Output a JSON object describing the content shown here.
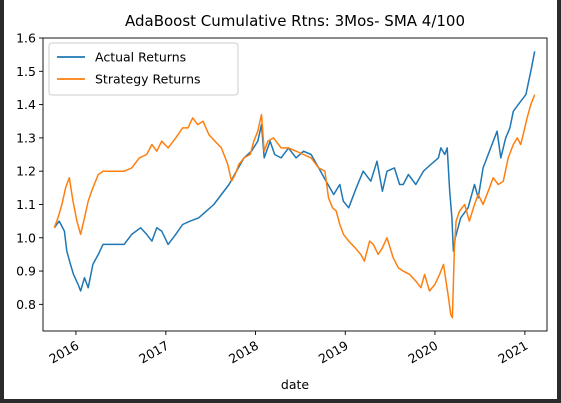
{
  "chart_data": {
    "type": "line",
    "title": "AdaBoost Cumulative Rtns: 3Mos- SMA 4/100",
    "xlabel": "date",
    "ylabel": "",
    "xlim": [
      "2015-08-20",
      "2021-04-01"
    ],
    "ylim": [
      0.72,
      1.6
    ],
    "x_ticks": [
      {
        "label": "2016",
        "date": "2016-01-01"
      },
      {
        "label": "2017",
        "date": "2017-01-01"
      },
      {
        "label": "2018",
        "date": "2018-01-01"
      },
      {
        "label": "2019",
        "date": "2019-01-01"
      },
      {
        "label": "2020",
        "date": "2020-01-01"
      },
      {
        "label": "2021",
        "date": "2021-01-01"
      }
    ],
    "y_ticks": [
      0.8,
      0.9,
      1.0,
      1.1,
      1.2,
      1.3,
      1.4,
      1.5,
      1.6
    ],
    "y_tick_labels": [
      "0.8",
      "0.9",
      "1.0",
      "1.1",
      "1.2",
      "1.3",
      "1.4",
      "1.5",
      "1.6"
    ],
    "grid": false,
    "legend": {
      "position": "top-left"
    },
    "series": [
      {
        "name": "Actual Returns",
        "color": "#1f77b4",
        "points": [
          [
            "2015-10-05",
            1.03
          ],
          [
            "2015-10-25",
            1.05
          ],
          [
            "2015-11-15",
            1.02
          ],
          [
            "2015-11-25",
            0.96
          ],
          [
            "2015-12-10",
            0.92
          ],
          [
            "2015-12-22",
            0.89
          ],
          [
            "2016-01-10",
            0.86
          ],
          [
            "2016-01-20",
            0.84
          ],
          [
            "2016-02-05",
            0.88
          ],
          [
            "2016-02-20",
            0.85
          ],
          [
            "2016-03-10",
            0.92
          ],
          [
            "2016-04-01",
            0.95
          ],
          [
            "2016-04-20",
            0.98
          ],
          [
            "2016-05-10",
            0.98
          ],
          [
            "2016-06-10",
            0.98
          ],
          [
            "2016-07-15",
            0.98
          ],
          [
            "2016-08-15",
            1.01
          ],
          [
            "2016-09-20",
            1.03
          ],
          [
            "2016-10-15",
            1.01
          ],
          [
            "2016-11-05",
            0.99
          ],
          [
            "2016-11-25",
            1.03
          ],
          [
            "2016-12-15",
            1.02
          ],
          [
            "2017-01-10",
            0.98
          ],
          [
            "2017-02-10",
            1.01
          ],
          [
            "2017-03-10",
            1.04
          ],
          [
            "2017-04-10",
            1.05
          ],
          [
            "2017-05-15",
            1.06
          ],
          [
            "2017-06-15",
            1.08
          ],
          [
            "2017-07-15",
            1.1
          ],
          [
            "2017-08-15",
            1.13
          ],
          [
            "2017-09-15",
            1.16
          ],
          [
            "2017-10-15",
            1.2
          ],
          [
            "2017-11-15",
            1.24
          ],
          [
            "2017-12-15",
            1.26
          ],
          [
            "2018-01-10",
            1.29
          ],
          [
            "2018-01-25",
            1.34
          ],
          [
            "2018-02-05",
            1.24
          ],
          [
            "2018-03-01",
            1.29
          ],
          [
            "2018-03-20",
            1.25
          ],
          [
            "2018-04-15",
            1.24
          ],
          [
            "2018-05-15",
            1.27
          ],
          [
            "2018-06-15",
            1.24
          ],
          [
            "2018-07-15",
            1.26
          ],
          [
            "2018-08-15",
            1.25
          ],
          [
            "2018-09-15",
            1.21
          ],
          [
            "2018-10-15",
            1.17
          ],
          [
            "2018-11-15",
            1.13
          ],
          [
            "2018-12-10",
            1.16
          ],
          [
            "2018-12-24",
            1.11
          ],
          [
            "2019-01-15",
            1.09
          ],
          [
            "2019-02-15",
            1.15
          ],
          [
            "2019-03-15",
            1.2
          ],
          [
            "2019-04-15",
            1.17
          ],
          [
            "2019-05-10",
            1.23
          ],
          [
            "2019-06-01",
            1.14
          ],
          [
            "2019-06-20",
            1.2
          ],
          [
            "2019-07-20",
            1.21
          ],
          [
            "2019-08-10",
            1.16
          ],
          [
            "2019-08-25",
            1.16
          ],
          [
            "2019-09-15",
            1.19
          ],
          [
            "2019-10-15",
            1.16
          ],
          [
            "2019-11-15",
            1.2
          ],
          [
            "2019-12-15",
            1.22
          ],
          [
            "2020-01-15",
            1.24
          ],
          [
            "2020-01-25",
            1.27
          ],
          [
            "2020-02-10",
            1.25
          ],
          [
            "2020-02-20",
            1.27
          ],
          [
            "2020-03-01",
            1.14
          ],
          [
            "2020-03-10",
            1.06
          ],
          [
            "2020-03-16",
            0.96
          ],
          [
            "2020-03-24",
            1.0
          ],
          [
            "2020-04-15",
            1.06
          ],
          [
            "2020-05-15",
            1.09
          ],
          [
            "2020-06-10",
            1.16
          ],
          [
            "2020-06-25",
            1.12
          ],
          [
            "2020-07-15",
            1.21
          ],
          [
            "2020-08-15",
            1.27
          ],
          [
            "2020-09-10",
            1.32
          ],
          [
            "2020-09-25",
            1.24
          ],
          [
            "2020-10-15",
            1.3
          ],
          [
            "2020-11-01",
            1.33
          ],
          [
            "2020-11-15",
            1.38
          ],
          [
            "2020-12-15",
            1.41
          ],
          [
            "2021-01-05",
            1.43
          ],
          [
            "2021-01-25",
            1.5
          ],
          [
            "2021-02-10",
            1.56
          ]
        ]
      },
      {
        "name": "Strategy Returns",
        "color": "#ff7f0e",
        "points": [
          [
            "2015-10-05",
            1.03
          ],
          [
            "2015-10-20",
            1.06
          ],
          [
            "2015-11-05",
            1.1
          ],
          [
            "2015-11-20",
            1.15
          ],
          [
            "2015-12-05",
            1.18
          ],
          [
            "2015-12-20",
            1.11
          ],
          [
            "2016-01-05",
            1.05
          ],
          [
            "2016-01-20",
            1.01
          ],
          [
            "2016-02-05",
            1.06
          ],
          [
            "2016-02-20",
            1.11
          ],
          [
            "2016-03-10",
            1.15
          ],
          [
            "2016-04-01",
            1.19
          ],
          [
            "2016-04-20",
            1.2
          ],
          [
            "2016-06-01",
            1.2
          ],
          [
            "2016-07-15",
            1.2
          ],
          [
            "2016-08-15",
            1.21
          ],
          [
            "2016-09-15",
            1.24
          ],
          [
            "2016-10-15",
            1.25
          ],
          [
            "2016-11-05",
            1.28
          ],
          [
            "2016-11-25",
            1.26
          ],
          [
            "2016-12-15",
            1.29
          ],
          [
            "2017-01-10",
            1.27
          ],
          [
            "2017-02-10",
            1.3
          ],
          [
            "2017-03-10",
            1.33
          ],
          [
            "2017-04-01",
            1.33
          ],
          [
            "2017-04-20",
            1.36
          ],
          [
            "2017-05-10",
            1.34
          ],
          [
            "2017-06-01",
            1.35
          ],
          [
            "2017-06-25",
            1.31
          ],
          [
            "2017-07-20",
            1.29
          ],
          [
            "2017-08-15",
            1.27
          ],
          [
            "2017-09-10",
            1.22
          ],
          [
            "2017-09-25",
            1.17
          ],
          [
            "2017-10-10",
            1.19
          ],
          [
            "2017-10-25",
            1.22
          ],
          [
            "2017-11-15",
            1.24
          ],
          [
            "2017-12-10",
            1.25
          ],
          [
            "2017-12-25",
            1.29
          ],
          [
            "2018-01-10",
            1.32
          ],
          [
            "2018-01-25",
            1.37
          ],
          [
            "2018-02-05",
            1.26
          ],
          [
            "2018-02-20",
            1.29
          ],
          [
            "2018-03-15",
            1.3
          ],
          [
            "2018-04-15",
            1.27
          ],
          [
            "2018-05-15",
            1.27
          ],
          [
            "2018-06-15",
            1.26
          ],
          [
            "2018-07-15",
            1.25
          ],
          [
            "2018-08-15",
            1.24
          ],
          [
            "2018-09-15",
            1.21
          ],
          [
            "2018-10-10",
            1.2
          ],
          [
            "2018-10-25",
            1.12
          ],
          [
            "2018-11-10",
            1.09
          ],
          [
            "2018-11-25",
            1.08
          ],
          [
            "2018-12-10",
            1.04
          ],
          [
            "2018-12-25",
            1.01
          ],
          [
            "2019-01-15",
            0.99
          ],
          [
            "2019-02-10",
            0.97
          ],
          [
            "2019-03-05",
            0.95
          ],
          [
            "2019-03-20",
            0.93
          ],
          [
            "2019-04-10",
            0.99
          ],
          [
            "2019-04-25",
            0.98
          ],
          [
            "2019-05-15",
            0.95
          ],
          [
            "2019-06-01",
            0.97
          ],
          [
            "2019-06-20",
            1.0
          ],
          [
            "2019-07-15",
            0.94
          ],
          [
            "2019-08-05",
            0.91
          ],
          [
            "2019-08-25",
            0.9
          ],
          [
            "2019-09-20",
            0.89
          ],
          [
            "2019-10-15",
            0.87
          ],
          [
            "2019-11-05",
            0.85
          ],
          [
            "2019-11-20",
            0.89
          ],
          [
            "2019-12-10",
            0.84
          ],
          [
            "2020-01-01",
            0.86
          ],
          [
            "2020-01-20",
            0.89
          ],
          [
            "2020-02-05",
            0.92
          ],
          [
            "2020-02-15",
            0.87
          ],
          [
            "2020-02-25",
            0.82
          ],
          [
            "2020-03-05",
            0.77
          ],
          [
            "2020-03-12",
            0.76
          ],
          [
            "2020-03-20",
            0.97
          ],
          [
            "2020-03-27",
            1.05
          ],
          [
            "2020-04-10",
            1.08
          ],
          [
            "2020-05-01",
            1.1
          ],
          [
            "2020-05-20",
            1.05
          ],
          [
            "2020-06-10",
            1.1
          ],
          [
            "2020-06-25",
            1.13
          ],
          [
            "2020-07-15",
            1.1
          ],
          [
            "2020-08-10",
            1.15
          ],
          [
            "2020-08-25",
            1.18
          ],
          [
            "2020-09-15",
            1.16
          ],
          [
            "2020-10-05",
            1.17
          ],
          [
            "2020-10-25",
            1.24
          ],
          [
            "2020-11-15",
            1.28
          ],
          [
            "2020-12-01",
            1.3
          ],
          [
            "2020-12-15",
            1.28
          ],
          [
            "2020-12-25",
            1.31
          ],
          [
            "2021-01-10",
            1.36
          ],
          [
            "2021-01-25",
            1.4
          ],
          [
            "2021-02-10",
            1.43
          ]
        ]
      }
    ]
  }
}
